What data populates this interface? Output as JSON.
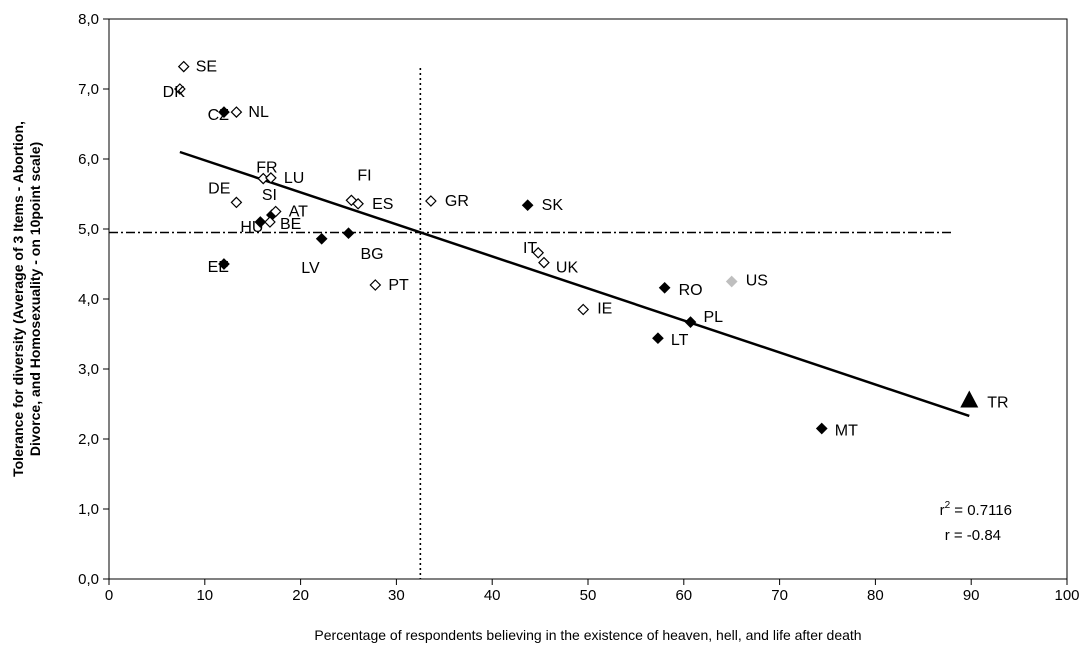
{
  "chart_data": {
    "type": "scatter",
    "title": "",
    "xlabel": "Percentage of respondents believing in the existence of heaven, hell, and life after death",
    "ylabel_line1": "Tolerance for diversity (Average of 3 Items - Abortion,",
    "ylabel_line2": "Divorce, and Homosexuality - on 10point scale)",
    "xlim": [
      0,
      100
    ],
    "ylim": [
      0,
      8
    ],
    "x_ticks": [
      "0",
      "10",
      "20",
      "30",
      "40",
      "50",
      "60",
      "70",
      "80",
      "90",
      "100"
    ],
    "y_ticks": [
      "0,0",
      "1,0",
      "2,0",
      "3,0",
      "4,0",
      "5,0",
      "6,0",
      "7,0",
      "8,0"
    ],
    "grid": false,
    "legend": "none",
    "marker_colors": {
      "open": "#ffffff",
      "filled": "#000000",
      "grey": "#bfbfbf"
    },
    "points": [
      {
        "label": "SE",
        "x": 7.8,
        "y": 7.32,
        "marker": "open"
      },
      {
        "label": "DK",
        "x": 7.4,
        "y": 7.0,
        "marker": "open"
      },
      {
        "label": "CZ",
        "x": 12.0,
        "y": 6.67,
        "marker": "filled"
      },
      {
        "label": "NL",
        "x": 13.3,
        "y": 6.67,
        "marker": "open"
      },
      {
        "label": "FR",
        "x": 16.1,
        "y": 5.72,
        "marker": "open"
      },
      {
        "label": "LU",
        "x": 16.9,
        "y": 5.73,
        "marker": "open"
      },
      {
        "label": "DE",
        "x": 13.3,
        "y": 5.38,
        "marker": "open"
      },
      {
        "label": "SI",
        "x": 17.0,
        "y": 5.2,
        "marker": "filled"
      },
      {
        "label": "AT",
        "x": 17.4,
        "y": 5.25,
        "marker": "open"
      },
      {
        "label": "HU",
        "x": 15.8,
        "y": 5.1,
        "marker": "filled"
      },
      {
        "label": "BE",
        "x": 16.8,
        "y": 5.1,
        "marker": "open"
      },
      {
        "label": "LV",
        "x": 22.2,
        "y": 4.86,
        "marker": "filled"
      },
      {
        "label": "BG",
        "x": 25.0,
        "y": 4.94,
        "marker": "filled"
      },
      {
        "label": "FI",
        "x": 25.3,
        "y": 5.41,
        "marker": "open"
      },
      {
        "label": "ES",
        "x": 26.0,
        "y": 5.36,
        "marker": "open"
      },
      {
        "label": "EE",
        "x": 12.0,
        "y": 4.5,
        "marker": "filled"
      },
      {
        "label": "PT",
        "x": 27.8,
        "y": 4.2,
        "marker": "open"
      },
      {
        "label": "GR",
        "x": 33.6,
        "y": 5.4,
        "marker": "open"
      },
      {
        "label": "SK",
        "x": 43.7,
        "y": 5.34,
        "marker": "filled"
      },
      {
        "label": "IT",
        "x": 44.8,
        "y": 4.66,
        "marker": "open"
      },
      {
        "label": "UK",
        "x": 45.4,
        "y": 4.52,
        "marker": "open"
      },
      {
        "label": "IE",
        "x": 49.5,
        "y": 3.85,
        "marker": "open"
      },
      {
        "label": "RO",
        "x": 58.0,
        "y": 4.16,
        "marker": "filled"
      },
      {
        "label": "US",
        "x": 65.0,
        "y": 4.25,
        "marker": "grey"
      },
      {
        "label": "PL",
        "x": 60.7,
        "y": 3.67,
        "marker": "filled"
      },
      {
        "label": "LT",
        "x": 57.3,
        "y": 3.44,
        "marker": "filled"
      },
      {
        "label": "MT",
        "x": 74.4,
        "y": 2.15,
        "marker": "filled"
      },
      {
        "label": "TR",
        "x": 89.8,
        "y": 2.55,
        "marker": "triangle"
      }
    ],
    "trendline": {
      "x": [
        7.4,
        89.8
      ],
      "y": [
        6.1,
        2.33
      ]
    },
    "reference_lines": {
      "vertical_x": 32.5,
      "horizontal_y": 4.95
    },
    "annotation": {
      "r2_prefix": "r",
      "r2_sup": "2",
      "r2_value": " = 0.7116",
      "r_text": "r = -0.84"
    }
  }
}
